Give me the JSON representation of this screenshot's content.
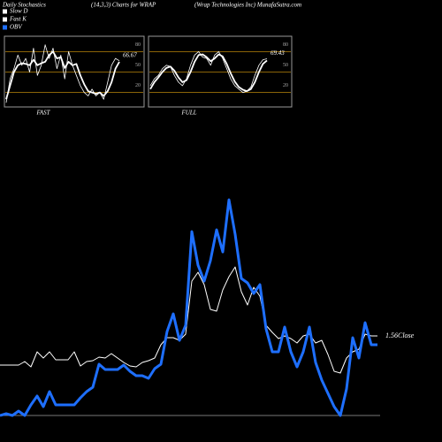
{
  "header": {
    "left": "Daily Stochastics",
    "center": "(14,3,3) Charts for WRAP",
    "right": "(Wrap Technologies Inc) MunafaSutra.com"
  },
  "legend": [
    {
      "name": "Slow D",
      "color": "#ffffff"
    },
    {
      "name": "Fast K",
      "color": "#ffffff"
    },
    {
      "name": "OBV",
      "color": "#1e6fff"
    }
  ],
  "chart_data": [
    {
      "type": "line",
      "title": "FAST",
      "ylim": [
        0,
        100
      ],
      "yticks": [
        20,
        50,
        80
      ],
      "grid": true,
      "grid_color": "#b8860b",
      "annotation": 66.67,
      "series": [
        {
          "color": "#ffffff",
          "values": [
            5,
            40,
            55,
            75,
            60,
            70,
            50,
            85,
            45,
            60,
            90,
            70,
            85,
            55,
            75,
            40,
            80,
            60,
            45,
            30,
            20,
            15,
            25,
            15,
            20,
            10,
            35,
            60,
            70,
            66.67
          ]
        },
        {
          "color": "#ffffff",
          "values": [
            10,
            30,
            50,
            60,
            63,
            62,
            60,
            68,
            60,
            63,
            65,
            75,
            80,
            70,
            72,
            56,
            65,
            60,
            62,
            45,
            32,
            22,
            20,
            18,
            20,
            15,
            22,
            35,
            55,
            65
          ]
        }
      ]
    },
    {
      "type": "line",
      "title": "FULL",
      "ylim": [
        0,
        100
      ],
      "yticks": [
        20,
        50,
        80
      ],
      "grid": true,
      "grid_color": "#b8860b",
      "annotation": 69.43,
      "series": [
        {
          "color": "#ffffff",
          "values": [
            30,
            40,
            45,
            55,
            60,
            58,
            45,
            35,
            30,
            40,
            60,
            75,
            80,
            72,
            70,
            60,
            75,
            80,
            70,
            55,
            40,
            30,
            25,
            20,
            22,
            28,
            45,
            60,
            68,
            69.43
          ]
        },
        {
          "color": "#ffffff",
          "values": [
            25,
            35,
            42,
            50,
            56,
            58,
            52,
            42,
            35,
            38,
            50,
            65,
            75,
            76,
            72,
            66,
            70,
            76,
            73,
            62,
            48,
            36,
            28,
            24,
            22,
            25,
            35,
            50,
            62,
            67
          ]
        }
      ]
    },
    {
      "type": "line",
      "ylim": [
        0,
        100
      ],
      "annotation": "1.56Close",
      "series": [
        {
          "color": "#ffffff",
          "values": [
            22.8,
            22.8,
            22.8,
            22.8,
            24.4,
            22,
            28.8,
            26,
            28.8,
            25.2,
            25.2,
            25.2,
            28.8,
            22.4,
            24.4,
            24.8,
            26.4,
            26,
            28,
            26,
            24,
            22.4,
            22,
            24,
            24.8,
            26,
            32,
            35.2,
            35.2,
            34,
            36.8,
            60.8,
            64.8,
            59.2,
            48,
            47.2,
            56.8,
            62.8,
            67.2,
            56,
            50,
            58,
            54,
            40.8,
            37.6,
            34.8,
            36,
            34.8,
            32.8,
            36,
            36.8,
            32.8,
            34,
            27.6,
            20,
            19.2,
            26,
            28.8,
            30,
            36.8,
            36,
            36
          ]
        },
        {
          "color": "#1e6fff",
          "values": [
            0,
            0.8,
            0,
            2,
            0,
            4.8,
            8.8,
            4,
            10.8,
            4.8,
            4.8,
            4.8,
            4.8,
            8,
            10.8,
            12.8,
            23.2,
            20.8,
            20.8,
            20.8,
            22.8,
            20,
            18,
            18,
            16.8,
            21.2,
            23.2,
            38,
            46,
            34,
            40.8,
            83.2,
            68,
            60.8,
            70,
            84,
            74,
            97.6,
            82,
            62,
            60,
            55.2,
            59.2,
            39.2,
            28.8,
            28.8,
            40,
            28.8,
            22,
            28.8,
            40,
            24,
            16,
            10,
            4,
            0,
            12,
            35.2,
            26,
            42,
            32,
            32
          ]
        }
      ]
    }
  ]
}
